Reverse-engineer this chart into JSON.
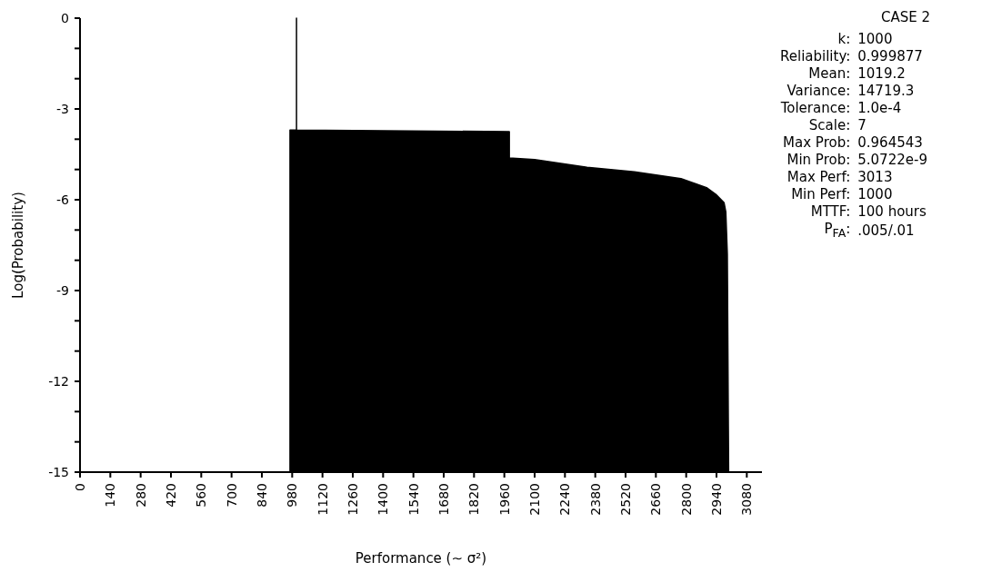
{
  "chart_data": {
    "type": "area",
    "title": "CASE 2",
    "xlabel": "Performance (∼ σ²)",
    "ylabel": "Log(Probability)",
    "x": [
      970,
      970,
      1000,
      1000,
      1000,
      1400,
      1983,
      1983,
      2100,
      2342,
      2561,
      2776,
      2894,
      2937,
      2975,
      2983,
      2990,
      2996
    ],
    "series": [
      {
        "color": "#000000",
        "values": [
          -15,
          -3.7,
          -3.7,
          0,
          -3.7,
          -3.72,
          -3.75,
          -4.62,
          -4.67,
          -4.93,
          -5.08,
          -5.3,
          -5.6,
          -5.82,
          -6.1,
          -6.4,
          -7.8,
          -15
        ]
      }
    ],
    "xlim": [
      0,
      3150
    ],
    "xticks": [
      0,
      140,
      280,
      420,
      560,
      700,
      840,
      980,
      1120,
      1260,
      1400,
      1540,
      1680,
      1820,
      1960,
      2100,
      2240,
      2380,
      2520,
      2660,
      2800,
      2940,
      3080
    ],
    "ylim": [
      -15,
      0
    ],
    "yticks": [
      -15,
      {
        "value": -14,
        "label": null
      },
      {
        "value": -13,
        "label": null
      },
      -12,
      {
        "value": -11,
        "label": null
      },
      {
        "value": -10,
        "label": null
      },
      -9,
      {
        "value": -8,
        "label": null
      },
      {
        "value": -7,
        "label": null
      },
      -6,
      {
        "value": -5,
        "label": null
      },
      {
        "value": -4,
        "label": null
      },
      -3,
      {
        "value": -2,
        "label": null
      },
      {
        "value": -1,
        "label": null
      },
      0
    ],
    "annotations": [
      "k: 1000",
      "Reliability: 0.999877",
      "Mean: 1019.2",
      "Variance: 14719.3",
      "Tolerance: 1.0e-4",
      "Scale: 7",
      "Max Prob: 0.964543",
      "Min Prob: 5.0722e-9",
      "Max Perf: 3013",
      "Min Perf: 1000",
      "MTTF: 100 hours",
      "P$_{FA}$: .005/.01"
    ]
  }
}
